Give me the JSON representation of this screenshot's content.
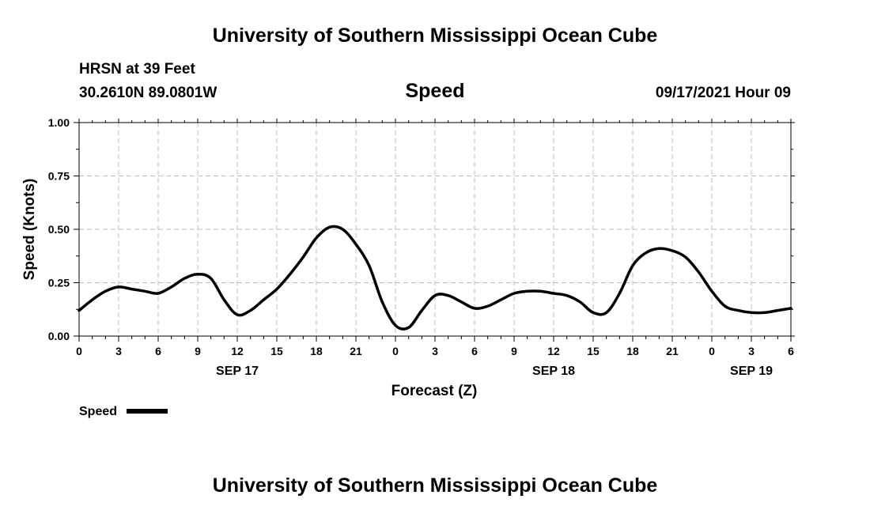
{
  "header": {
    "top_title": "University of Southern Mississippi Ocean Cube",
    "station": "HRSN at 39 Feet",
    "coords": "30.2610N  89.0801W",
    "chart_title": "Speed",
    "datetime": "09/17/2021 Hour 09"
  },
  "footer": {
    "bottom_title": "University of Southern Mississippi Ocean Cube"
  },
  "chart_data": {
    "type": "line",
    "title": "Speed",
    "xlabel": "Forecast (Z)",
    "ylabel": "Speed (Knots)",
    "xlim": [
      0,
      54
    ],
    "ylim": [
      0,
      1
    ],
    "grid": true,
    "x_tick_values": [
      0,
      3,
      6,
      9,
      12,
      15,
      18,
      21,
      24,
      27,
      30,
      33,
      36,
      39,
      42,
      45,
      48,
      51,
      54
    ],
    "x_tick_labels": [
      "0",
      "3",
      "6",
      "9",
      "12",
      "15",
      "18",
      "21",
      "0",
      "3",
      "6",
      "9",
      "12",
      "15",
      "18",
      "21",
      "0",
      "3",
      "6"
    ],
    "y_tick_values": [
      0,
      0.25,
      0.5,
      0.75,
      1.0
    ],
    "y_tick_labels": [
      "0.00",
      "0.25",
      "0.50",
      "0.75",
      "1.00"
    ],
    "date_labels": [
      {
        "x": 12,
        "label": "SEP 17"
      },
      {
        "x": 36,
        "label": "SEP 18"
      },
      {
        "x": 51,
        "label": "SEP 19"
      }
    ],
    "legend": {
      "position": "bottom-left",
      "label": "Speed"
    },
    "colors": {
      "line": "#000000",
      "grid": "#bbbbbb"
    },
    "series": [
      {
        "name": "Speed",
        "x": [
          0,
          1,
          2,
          3,
          4,
          5,
          6,
          7,
          8,
          9,
          10,
          11,
          12,
          13,
          14,
          15,
          16,
          17,
          18,
          19,
          20,
          21,
          22,
          23,
          24,
          25,
          26,
          27,
          28,
          29,
          30,
          31,
          32,
          33,
          34,
          35,
          36,
          37,
          38,
          39,
          40,
          41,
          42,
          43,
          44,
          45,
          46,
          47,
          48,
          49,
          50,
          51,
          52,
          53,
          54
        ],
        "values": [
          0.12,
          0.17,
          0.21,
          0.23,
          0.22,
          0.21,
          0.2,
          0.23,
          0.27,
          0.29,
          0.27,
          0.17,
          0.1,
          0.12,
          0.17,
          0.22,
          0.29,
          0.37,
          0.46,
          0.51,
          0.5,
          0.43,
          0.33,
          0.16,
          0.05,
          0.04,
          0.12,
          0.19,
          0.19,
          0.16,
          0.13,
          0.14,
          0.17,
          0.2,
          0.21,
          0.21,
          0.2,
          0.19,
          0.16,
          0.11,
          0.11,
          0.2,
          0.33,
          0.39,
          0.41,
          0.4,
          0.37,
          0.3,
          0.21,
          0.14,
          0.12,
          0.11,
          0.11,
          0.12,
          0.13
        ]
      }
    ]
  }
}
